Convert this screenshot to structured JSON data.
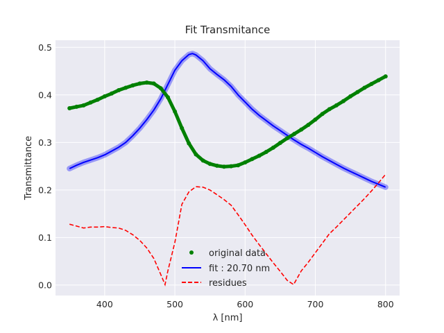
{
  "chart_data": {
    "type": "line",
    "title": "Fit Transmitance",
    "xlabel": "λ [nm]",
    "ylabel": "Transmittance",
    "xlim": [
      330,
      820
    ],
    "ylim": [
      -0.022,
      0.515
    ],
    "xticks": [
      400,
      500,
      600,
      700,
      800
    ],
    "yticks": [
      0.0,
      0.1,
      0.2,
      0.3,
      0.4,
      0.5
    ],
    "xtick_labels": [
      "400",
      "500",
      "600",
      "700",
      "800"
    ],
    "ytick_labels": [
      "0.0",
      "0.1",
      "0.2",
      "0.3",
      "0.4",
      "0.5"
    ],
    "grid": true,
    "legend_position": "lower-center",
    "colors": {
      "background": "#eaeaf2",
      "grid": "#ffffff",
      "original": "#008000",
      "fit": "#0000ff",
      "residues": "#ff0000"
    },
    "series": [
      {
        "name": "original data",
        "style": "points",
        "x": [
          350,
          360,
          370,
          380,
          390,
          400,
          410,
          420,
          430,
          440,
          450,
          460,
          470,
          480,
          490,
          500,
          510,
          520,
          530,
          540,
          550,
          560,
          570,
          580,
          590,
          600,
          610,
          620,
          630,
          640,
          650,
          660,
          670,
          680,
          690,
          700,
          710,
          720,
          730,
          740,
          750,
          760,
          770,
          780,
          790,
          800
        ],
        "y": [
          0.372,
          0.375,
          0.378,
          0.384,
          0.39,
          0.397,
          0.403,
          0.41,
          0.415,
          0.42,
          0.424,
          0.426,
          0.424,
          0.414,
          0.395,
          0.365,
          0.33,
          0.298,
          0.275,
          0.262,
          0.255,
          0.251,
          0.249,
          0.25,
          0.252,
          0.258,
          0.265,
          0.272,
          0.28,
          0.289,
          0.299,
          0.309,
          0.318,
          0.327,
          0.337,
          0.348,
          0.36,
          0.37,
          0.378,
          0.387,
          0.397,
          0.406,
          0.415,
          0.423,
          0.431,
          0.439
        ]
      },
      {
        "name": "fit : 20.70 nm",
        "style": "line",
        "x": [
          350,
          360,
          370,
          380,
          390,
          400,
          410,
          420,
          430,
          440,
          450,
          460,
          470,
          480,
          490,
          500,
          510,
          520,
          525,
          530,
          540,
          550,
          560,
          570,
          580,
          590,
          600,
          610,
          620,
          630,
          640,
          650,
          660,
          670,
          680,
          690,
          700,
          710,
          720,
          730,
          740,
          750,
          760,
          770,
          780,
          790,
          800
        ],
        "y": [
          0.245,
          0.252,
          0.258,
          0.263,
          0.268,
          0.274,
          0.282,
          0.29,
          0.3,
          0.314,
          0.33,
          0.348,
          0.368,
          0.392,
          0.422,
          0.452,
          0.472,
          0.485,
          0.487,
          0.484,
          0.472,
          0.455,
          0.443,
          0.432,
          0.418,
          0.4,
          0.385,
          0.37,
          0.357,
          0.346,
          0.335,
          0.325,
          0.315,
          0.305,
          0.296,
          0.288,
          0.279,
          0.27,
          0.262,
          0.254,
          0.246,
          0.239,
          0.232,
          0.225,
          0.218,
          0.212,
          0.206
        ]
      },
      {
        "name": "residues",
        "style": "dashed",
        "x": [
          350,
          360,
          370,
          380,
          390,
          400,
          410,
          420,
          430,
          440,
          450,
          460,
          470,
          480,
          486,
          490,
          500,
          510,
          520,
          530,
          540,
          550,
          560,
          570,
          580,
          590,
          600,
          610,
          620,
          630,
          640,
          650,
          660,
          669,
          680,
          690,
          700,
          710,
          720,
          730,
          740,
          750,
          760,
          770,
          780,
          790,
          800
        ],
        "y": [
          0.128,
          0.124,
          0.12,
          0.122,
          0.122,
          0.123,
          0.121,
          0.12,
          0.115,
          0.106,
          0.094,
          0.078,
          0.056,
          0.022,
          0.001,
          0.03,
          0.09,
          0.17,
          0.196,
          0.207,
          0.206,
          0.2,
          0.19,
          0.18,
          0.168,
          0.148,
          0.127,
          0.105,
          0.085,
          0.066,
          0.047,
          0.029,
          0.01,
          0.001,
          0.03,
          0.048,
          0.068,
          0.088,
          0.108,
          0.122,
          0.137,
          0.152,
          0.167,
          0.182,
          0.198,
          0.215,
          0.233
        ]
      }
    ]
  }
}
